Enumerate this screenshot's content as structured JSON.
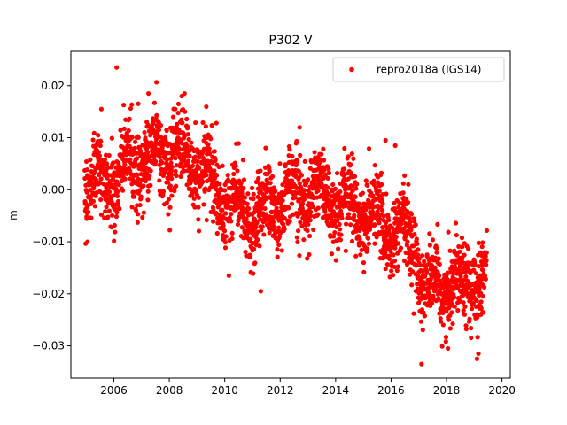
{
  "chart_data": {
    "type": "scatter",
    "title": "P302 V",
    "xlabel": "",
    "ylabel": "m",
    "xlim": [
      2004.45,
      2020.3
    ],
    "ylim": [
      -0.0362,
      0.0266
    ],
    "xticks": [
      2006,
      2008,
      2010,
      2012,
      2014,
      2016,
      2018,
      2020
    ],
    "xtick_labels": [
      "2006",
      "2008",
      "2010",
      "2012",
      "2014",
      "2016",
      "2018",
      "2020"
    ],
    "yticks": [
      0.02,
      0.01,
      0.0,
      -0.01,
      -0.02,
      -0.03
    ],
    "ytick_labels": [
      "0.02",
      "0.01",
      "0.00",
      "−0.01",
      "−0.02",
      "−0.03"
    ],
    "grid": false,
    "legend_position": "top-right",
    "series": [
      {
        "name": "repro2018a (IGS14)",
        "color": "#ff0000",
        "marker": "circle",
        "x_start": 2004.95,
        "x_end": 2019.45,
        "trend": [
          [
            2005.0,
            0.002
          ],
          [
            2006.0,
            0.002
          ],
          [
            2007.0,
            0.006
          ],
          [
            2008.0,
            0.007
          ],
          [
            2009.0,
            0.005
          ],
          [
            2010.0,
            -0.002
          ],
          [
            2011.0,
            -0.006
          ],
          [
            2012.0,
            -0.002
          ],
          [
            2013.0,
            0.0
          ],
          [
            2014.0,
            -0.002
          ],
          [
            2015.0,
            -0.004
          ],
          [
            2016.0,
            -0.008
          ],
          [
            2016.9,
            -0.01
          ],
          [
            2017.2,
            -0.02
          ],
          [
            2018.0,
            -0.018
          ],
          [
            2019.0,
            -0.017
          ],
          [
            2019.45,
            -0.018
          ]
        ],
        "highlights": [
          [
            2006.1,
            0.0235
          ],
          [
            2007.25,
            0.0185
          ],
          [
            2008.55,
            0.0185
          ],
          [
            2008.45,
            0.018
          ],
          [
            2005.55,
            0.0155
          ],
          [
            2009.7,
            0.0128
          ],
          [
            2012.7,
            0.012
          ],
          [
            2015.8,
            0.0095
          ],
          [
            2016.15,
            0.0085
          ],
          [
            2017.1,
            -0.0335
          ],
          [
            2019.1,
            -0.0325
          ],
          [
            2019.15,
            -0.0315
          ],
          [
            2018.05,
            -0.0305
          ],
          [
            2011.3,
            -0.0195
          ],
          [
            2010.15,
            -0.0165
          ],
          [
            2005.05,
            -0.01
          ]
        ]
      }
    ]
  }
}
